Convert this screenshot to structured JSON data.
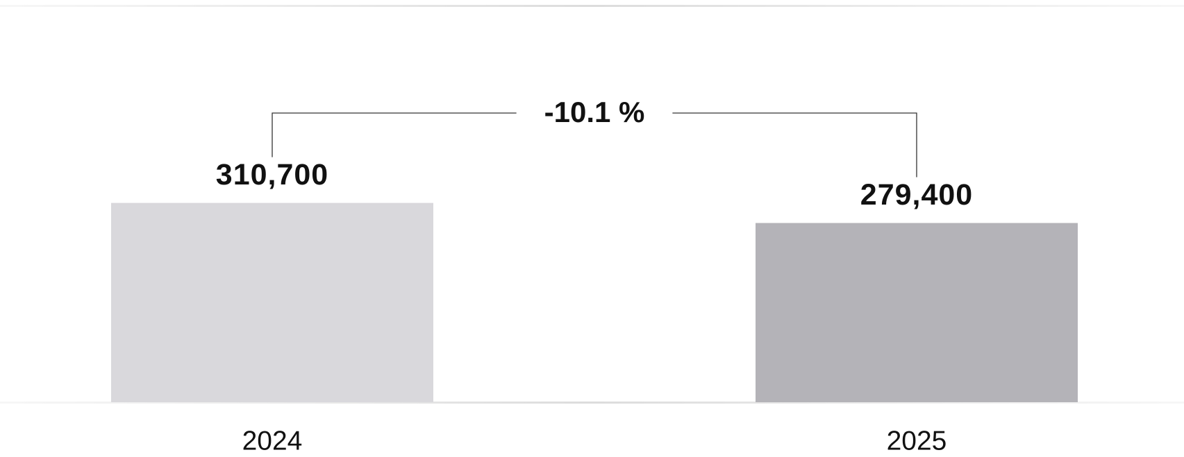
{
  "chart_data": {
    "type": "bar",
    "categories": [
      "2024",
      "2025"
    ],
    "values": [
      310700,
      279400
    ],
    "value_labels": [
      "310,700",
      "279,400"
    ],
    "colors": [
      "#d9d8dc",
      "#b4b3b8"
    ],
    "annotation": "-10.1 %",
    "ylim": [
      0,
      600000
    ]
  }
}
